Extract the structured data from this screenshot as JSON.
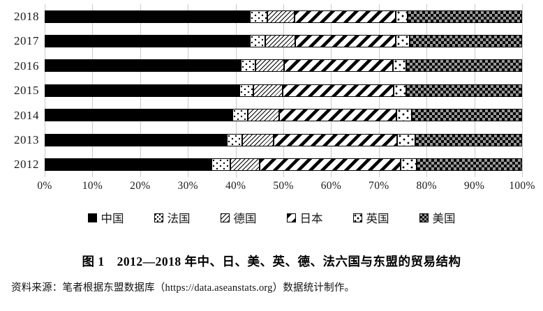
{
  "figure": {
    "caption": "图 1　2012—2018 年中、日、美、英、德、法六国与东盟的贸易结构",
    "source": "资料来源：笔者根据东盟数据库（https://data.aseanstats.org）数据统计制作。"
  },
  "chart_data": {
    "type": "bar",
    "orientation": "horizontal",
    "stacked": true,
    "unit": "percent",
    "title": "2012—2018 年中、日、美、英、德、法六国与东盟的贸易结构",
    "categories": [
      "2018",
      "2017",
      "2016",
      "2015",
      "2014",
      "2013",
      "2012"
    ],
    "series": [
      {
        "key": "china",
        "name": "中国",
        "pattern": "solid-black",
        "values": [
          43.0,
          43.0,
          41.1,
          40.8,
          39.4,
          38.2,
          35.0
        ]
      },
      {
        "key": "france",
        "name": "法国",
        "pattern": "white-dots",
        "values": [
          3.6,
          3.2,
          3.1,
          2.9,
          3.2,
          3.2,
          3.9
        ]
      },
      {
        "key": "germany",
        "name": "德国",
        "pattern": "fine-diagonal-hatch",
        "values": [
          5.8,
          6.3,
          6.0,
          6.2,
          6.5,
          6.5,
          6.1
        ]
      },
      {
        "key": "japan",
        "name": "日本",
        "pattern": "wide-diagonal-stripes",
        "values": [
          21.1,
          21.0,
          22.7,
          23.2,
          24.6,
          26.0,
          29.6
        ]
      },
      {
        "key": "uk",
        "name": "英国",
        "pattern": "white-sparse-dots",
        "values": [
          2.5,
          3.0,
          2.9,
          2.7,
          3.2,
          3.7,
          3.4
        ]
      },
      {
        "key": "usa",
        "name": "美国",
        "pattern": "checkerboard",
        "values": [
          24.0,
          23.5,
          24.2,
          24.2,
          23.1,
          22.4,
          22.0
        ]
      }
    ],
    "x_axis": {
      "ticks": [
        "0%",
        "10%",
        "20%",
        "30%",
        "40%",
        "50%",
        "60%",
        "70%",
        "80%",
        "90%",
        "100%"
      ],
      "range": [
        0,
        100
      ]
    },
    "legend": [
      "中国",
      "法国",
      "德国",
      "日本",
      "英国",
      "美国"
    ],
    "legend_position": "bottom",
    "grid": true,
    "colors": {
      "bar_fill": "#000000",
      "gridline": "#c9c9c9",
      "background": "#ffffff"
    }
  }
}
